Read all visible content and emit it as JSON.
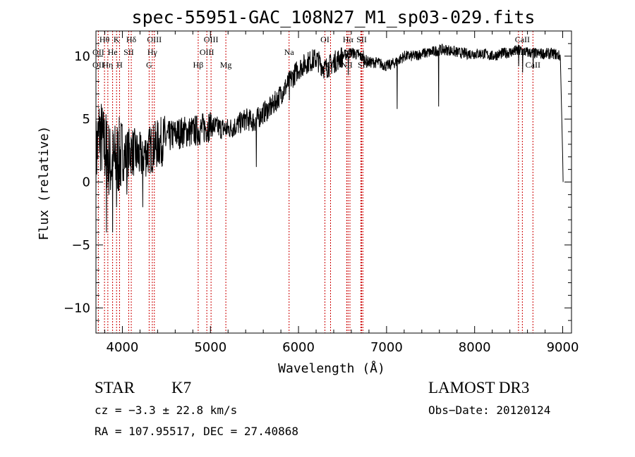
{
  "chart_data": {
    "type": "line",
    "title": "spec-55951-GAC_108N27_M1_sp03-029.fits",
    "xlabel": "Wavelength (Å)",
    "ylabel": "Flux (relative)",
    "xlim": [
      3700,
      9100
    ],
    "ylim": [
      -12,
      12
    ],
    "xticks": [
      4000,
      5000,
      6000,
      7000,
      8000,
      9000
    ],
    "yticks": [
      -10,
      -5,
      0,
      5,
      10
    ],
    "grid": false,
    "series": [
      {
        "name": "flux",
        "anchors": [
          [
            3700,
            2
          ],
          [
            3740,
            4
          ],
          [
            3780,
            3
          ],
          [
            3820,
            2.5
          ],
          [
            3860,
            1.5
          ],
          [
            3900,
            1.5
          ],
          [
            3950,
            2
          ],
          [
            4000,
            2
          ],
          [
            4100,
            2.5
          ],
          [
            4200,
            2
          ],
          [
            4300,
            2.5
          ],
          [
            4400,
            3
          ],
          [
            4500,
            3.5
          ],
          [
            4600,
            3.8
          ],
          [
            4700,
            4
          ],
          [
            4800,
            4
          ],
          [
            4900,
            4.2
          ],
          [
            5000,
            4.5
          ],
          [
            5100,
            4.3
          ],
          [
            5200,
            4.2
          ],
          [
            5300,
            4.5
          ],
          [
            5400,
            5
          ],
          [
            5500,
            4.8
          ],
          [
            5600,
            5.5
          ],
          [
            5700,
            6
          ],
          [
            5800,
            7
          ],
          [
            5900,
            8
          ],
          [
            6000,
            9
          ],
          [
            6100,
            9.5
          ],
          [
            6200,
            9.8
          ],
          [
            6300,
            9
          ],
          [
            6400,
            9.5
          ],
          [
            6500,
            10
          ],
          [
            6600,
            10.3
          ],
          [
            6700,
            10
          ],
          [
            6800,
            9.5
          ],
          [
            6900,
            9.5
          ],
          [
            7000,
            9.2
          ],
          [
            7100,
            9.5
          ],
          [
            7200,
            10
          ],
          [
            7300,
            10
          ],
          [
            7400,
            10.2
          ],
          [
            7500,
            10.3
          ],
          [
            7600,
            10.5
          ],
          [
            7700,
            10.5
          ],
          [
            7800,
            10.3
          ],
          [
            7900,
            10.2
          ],
          [
            8000,
            10.2
          ],
          [
            8100,
            10.2
          ],
          [
            8200,
            10
          ],
          [
            8300,
            10.2
          ],
          [
            8400,
            10.3
          ],
          [
            8500,
            10.5
          ],
          [
            8600,
            10.3
          ],
          [
            8700,
            10.2
          ],
          [
            8800,
            10.2
          ],
          [
            8900,
            10.2
          ],
          [
            8970,
            10
          ]
        ],
        "dips": [
          [
            3820,
            -4
          ],
          [
            3890,
            -4
          ],
          [
            3935,
            -2
          ],
          [
            4050,
            -1
          ],
          [
            4230,
            -2
          ],
          [
            5520,
            1.2
          ],
          [
            5895,
            6.5
          ],
          [
            6565,
            8.5
          ],
          [
            7120,
            5.8
          ],
          [
            7590,
            6
          ],
          [
            8500,
            9.2
          ],
          [
            8545,
            8.7
          ],
          [
            8665,
            9
          ]
        ],
        "end": [
          [
            9000,
            2
          ],
          [
            9005,
            0
          ]
        ]
      }
    ],
    "lines_labels": [
      {
        "label": "Hθ",
        "x": 3797,
        "row": 1
      },
      {
        "label": "K",
        "x": 3934,
        "row": 1
      },
      {
        "label": "Hδ",
        "x": 4101,
        "row": 1
      },
      {
        "label": "OIII",
        "x": 4363,
        "row": 1
      },
      {
        "label": "OIII",
        "x": 5007,
        "row": 1
      },
      {
        "label": "OI",
        "x": 6300,
        "row": 1
      },
      {
        "label": "Hα",
        "x": 6563,
        "row": 1
      },
      {
        "label": "SII",
        "x": 6717,
        "row": 1
      },
      {
        "label": "CaII",
        "x": 8542,
        "row": 1
      },
      {
        "label": "OII",
        "x": 3727,
        "row": 2
      },
      {
        "label": "He",
        "x": 3889,
        "row": 2
      },
      {
        "label": "SII",
        "x": 4072,
        "row": 2
      },
      {
        "label": "Hγ",
        "x": 4340,
        "row": 2
      },
      {
        "label": "OIII",
        "x": 4959,
        "row": 2
      },
      {
        "label": "Na",
        "x": 5893,
        "row": 2
      },
      {
        "label": "NII",
        "x": 6584,
        "row": 2
      },
      {
        "label": "Li",
        "x": 6708,
        "row": 2
      },
      {
        "label": "CaII",
        "x": 8498,
        "row": 2
      },
      {
        "label": "OII",
        "x": 3727,
        "row": 3
      },
      {
        "label": "Hη",
        "x": 3835,
        "row": 3
      },
      {
        "label": "H",
        "x": 3968,
        "row": 3
      },
      {
        "label": "G",
        "x": 4304,
        "row": 3
      },
      {
        "label": "Hβ",
        "x": 4861,
        "row": 3
      },
      {
        "label": "Mg",
        "x": 5175,
        "row": 3
      },
      {
        "label": "OI",
        "x": 6364,
        "row": 3
      },
      {
        "label": "NII",
        "x": 6548,
        "row": 3
      },
      {
        "label": "SII",
        "x": 6731,
        "row": 3
      },
      {
        "label": "CaII",
        "x": 8662,
        "row": 3
      }
    ],
    "line_positions": [
      3727,
      3797,
      3835,
      3889,
      3934,
      3968,
      4072,
      4101,
      4304,
      4340,
      4363,
      4861,
      4959,
      5007,
      5175,
      5893,
      6300,
      6364,
      6548,
      6563,
      6584,
      6708,
      6717,
      6731,
      8498,
      8542,
      8662
    ],
    "colors": {
      "spectrum": "#000000",
      "lines": "#cc0000",
      "axes": "#000000"
    }
  },
  "info": {
    "object_class": "STAR",
    "subclass": "K7",
    "survey": "LAMOST DR3",
    "cz": "cz = −3.3 ± 22.8 km/s",
    "obs_date": "Obs−Date: 20120124",
    "coords": "RA = 107.95517, DEC =  27.40868"
  }
}
